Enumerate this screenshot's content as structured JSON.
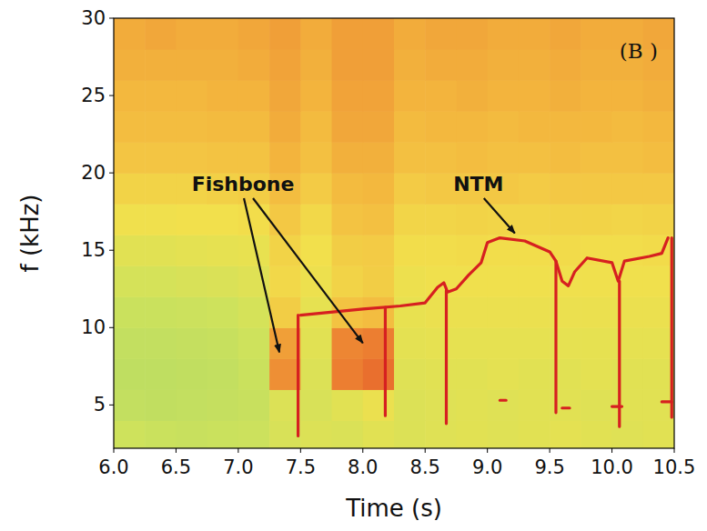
{
  "chart_data": {
    "type": "spectrogram",
    "panel_label": "(B )",
    "xlabel": "Time (s)",
    "ylabel": "f (kHz)",
    "xlim": [
      6.0,
      10.5
    ],
    "ylim": [
      2.2,
      30
    ],
    "xticks": [
      {
        "value": 6,
        "label": "6.0"
      },
      6.5,
      {
        "value": 7,
        "label": "7.0"
      },
      7.5,
      {
        "value": 8,
        "label": "8.0"
      },
      8.5,
      {
        "value": 9,
        "label": "9.0"
      },
      9.5,
      {
        "value": 10,
        "label": "10.0"
      },
      10.5
    ],
    "yticks": [
      5,
      10,
      15,
      20,
      25,
      30
    ],
    "time_bins": [
      6.0,
      6.25,
      6.5,
      6.75,
      7.0,
      7.25,
      7.5,
      7.75,
      8.0,
      8.25,
      8.5,
      8.75,
      9.0,
      9.25,
      9.5,
      9.75,
      10.0,
      10.25,
      10.5
    ],
    "freq_bins": [
      2,
      4,
      6,
      8,
      10,
      12,
      14,
      16,
      18,
      20,
      22,
      24,
      26,
      28,
      30
    ],
    "zlim": [
      0,
      1
    ],
    "cells": [
      [
        0.3,
        0.28,
        0.27,
        0.28,
        0.29,
        0.34,
        0.36,
        0.35,
        0.38,
        0.36,
        0.37,
        0.38,
        0.37,
        0.38,
        0.39,
        0.38,
        0.37,
        0.38
      ],
      [
        0.24,
        0.23,
        0.24,
        0.25,
        0.27,
        0.36,
        0.34,
        0.38,
        0.42,
        0.36,
        0.37,
        0.38,
        0.37,
        0.38,
        0.38,
        0.37,
        0.38,
        0.38
      ],
      [
        0.22,
        0.22,
        0.23,
        0.24,
        0.28,
        0.7,
        0.36,
        0.74,
        0.78,
        0.37,
        0.38,
        0.38,
        0.39,
        0.38,
        0.38,
        0.39,
        0.38,
        0.38
      ],
      [
        0.24,
        0.24,
        0.25,
        0.26,
        0.3,
        0.66,
        0.38,
        0.72,
        0.74,
        0.39,
        0.4,
        0.4,
        0.4,
        0.4,
        0.4,
        0.4,
        0.4,
        0.4
      ],
      [
        0.28,
        0.28,
        0.29,
        0.3,
        0.33,
        0.52,
        0.4,
        0.56,
        0.58,
        0.41,
        0.42,
        0.42,
        0.42,
        0.42,
        0.42,
        0.42,
        0.42,
        0.42
      ],
      [
        0.33,
        0.33,
        0.34,
        0.35,
        0.37,
        0.48,
        0.43,
        0.5,
        0.52,
        0.43,
        0.44,
        0.44,
        0.44,
        0.44,
        0.44,
        0.44,
        0.44,
        0.44
      ],
      [
        0.38,
        0.38,
        0.39,
        0.4,
        0.41,
        0.5,
        0.45,
        0.52,
        0.53,
        0.46,
        0.46,
        0.47,
        0.46,
        0.46,
        0.47,
        0.46,
        0.46,
        0.47
      ],
      [
        0.44,
        0.44,
        0.45,
        0.45,
        0.46,
        0.54,
        0.48,
        0.56,
        0.57,
        0.49,
        0.49,
        0.5,
        0.49,
        0.49,
        0.5,
        0.5,
        0.49,
        0.5
      ],
      [
        0.5,
        0.5,
        0.5,
        0.51,
        0.52,
        0.58,
        0.53,
        0.59,
        0.6,
        0.53,
        0.54,
        0.54,
        0.54,
        0.53,
        0.54,
        0.54,
        0.54,
        0.54
      ],
      [
        0.55,
        0.55,
        0.55,
        0.56,
        0.56,
        0.61,
        0.57,
        0.62,
        0.62,
        0.57,
        0.57,
        0.58,
        0.57,
        0.57,
        0.58,
        0.57,
        0.57,
        0.58
      ],
      [
        0.58,
        0.58,
        0.58,
        0.59,
        0.59,
        0.63,
        0.59,
        0.64,
        0.64,
        0.59,
        0.6,
        0.6,
        0.59,
        0.6,
        0.6,
        0.6,
        0.59,
        0.6
      ],
      [
        0.6,
        0.6,
        0.6,
        0.61,
        0.61,
        0.64,
        0.61,
        0.65,
        0.65,
        0.61,
        0.61,
        0.62,
        0.61,
        0.61,
        0.62,
        0.61,
        0.61,
        0.62
      ],
      [
        0.62,
        0.62,
        0.62,
        0.62,
        0.63,
        0.65,
        0.62,
        0.66,
        0.66,
        0.62,
        0.63,
        0.63,
        0.62,
        0.62,
        0.63,
        0.62,
        0.62,
        0.63
      ],
      [
        0.63,
        0.64,
        0.63,
        0.63,
        0.64,
        0.66,
        0.63,
        0.66,
        0.66,
        0.63,
        0.64,
        0.64,
        0.63,
        0.63,
        0.64,
        0.63,
        0.63,
        0.64
      ]
    ],
    "series": [
      {
        "type": "line",
        "color": "#d62020",
        "x": [
          7.5,
          8.0,
          8.3,
          8.5,
          8.6,
          8.65,
          8.68,
          8.75,
          8.85,
          8.95,
          9.0,
          9.1,
          9.3,
          9.5,
          9.55,
          9.6,
          9.65,
          9.7,
          9.8,
          10.0,
          10.05,
          10.1,
          10.3,
          10.4,
          10.45
        ],
        "values": [
          10.8,
          11.2,
          11.4,
          11.6,
          12.6,
          12.9,
          12.3,
          12.5,
          13.4,
          14.2,
          15.5,
          15.8,
          15.6,
          14.9,
          14.3,
          13.0,
          12.7,
          13.6,
          14.5,
          14.2,
          13.0,
          14.3,
          14.6,
          14.8,
          15.8
        ]
      },
      {
        "type": "line",
        "color": "#d62020",
        "x": [
          9.1,
          9.15,
          null,
          9.6,
          9.66,
          null,
          10.0,
          10.08,
          null,
          10.4,
          10.48
        ],
        "values": [
          5.3,
          5.3,
          null,
          4.8,
          4.8,
          null,
          4.9,
          4.9,
          null,
          5.2,
          5.2
        ]
      },
      {
        "type": "line",
        "color": "#d62020",
        "x": [
          7.48,
          7.48,
          null,
          8.18,
          8.18,
          null,
          8.67,
          8.67,
          null,
          9.55,
          9.55,
          null,
          10.06,
          10.06,
          null,
          10.48,
          10.48
        ],
        "values": [
          3.0,
          10.8,
          null,
          4.3,
          11.3,
          null,
          3.8,
          12.4,
          null,
          4.5,
          14.3,
          null,
          3.6,
          13.0,
          null,
          4.2,
          15.8
        ]
      }
    ],
    "annotations": [
      {
        "text": "Fishbone",
        "points": [
          {
            "x": 7.33,
            "y": 8.4
          },
          {
            "x": 8.0,
            "y": 9.0
          }
        ]
      },
      {
        "text": "NTM",
        "points": [
          {
            "x": 9.22,
            "y": 16.1
          }
        ]
      }
    ]
  }
}
